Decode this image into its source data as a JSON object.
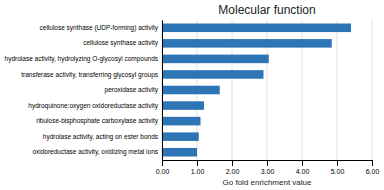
{
  "chart_data": {
    "type": "bar",
    "orientation": "horizontal",
    "title": "Molecular function",
    "categories": [
      "oxidoreductase activity, oxidizing metal ions",
      "hydrolase activity, acting on ester bonds",
      "ribulose-bisphosphate carboxylase activity",
      "hydroquinone:oxygen oxidoreductase activity",
      "peroxidase activity",
      "transferase activity, transferring glycosyl groups",
      "hydrolase activity, hydrolyzing O-glycosyl compounds",
      "cellulose synthase activity",
      "cellulose synthase (UDP-forming) activity"
    ],
    "values": [
      1.0,
      1.05,
      1.1,
      1.2,
      1.65,
      2.9,
      3.05,
      4.85,
      5.4
    ],
    "color": "#2E75B6",
    "xlabel": "Go fold enrichment value",
    "xlim": [
      0,
      6.0
    ],
    "xticks": [
      {
        "value": 0.0,
        "label": "0.00"
      },
      {
        "value": 1.0,
        "label": "1.00"
      },
      {
        "value": 2.0,
        "label": "2.00"
      },
      {
        "value": 3.0,
        "label": "3.00"
      },
      {
        "value": 4.0,
        "label": "4.00"
      },
      {
        "value": 5.0,
        "label": "5.00"
      },
      {
        "value": 6.0,
        "label": "6.00"
      }
    ],
    "grid": true
  }
}
